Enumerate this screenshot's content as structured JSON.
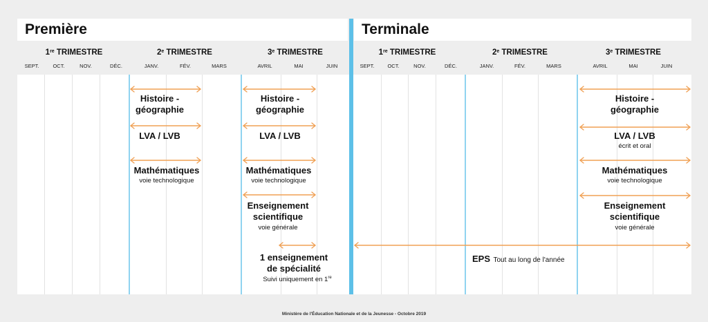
{
  "titles": {
    "premiere": "Première",
    "terminale": "Terminale"
  },
  "trimesters": {
    "premiere": [
      {
        "num": "1",
        "sup": "re",
        "label": " TRIMESTRE"
      },
      {
        "num": "2",
        "sup": "e",
        "label": " TRIMESTRE"
      },
      {
        "num": "3",
        "sup": "e",
        "label": " TRIMESTRE"
      }
    ],
    "terminale": [
      {
        "num": "1",
        "sup": "re",
        "label": " TRIMESTRE"
      },
      {
        "num": "2",
        "sup": "e",
        "label": " TRIMESTRE"
      },
      {
        "num": "3",
        "sup": "e",
        "label": " TRIMESTRE"
      }
    ]
  },
  "months": {
    "premiere": [
      "SEPT.",
      "OCT.",
      "NOV.",
      "DÉC.",
      "JANV.",
      "FÉV.",
      "MARS",
      "AVRIL",
      "MAI",
      "JUIN"
    ],
    "terminale": [
      "SEPT.",
      "OCT.",
      "NOV.",
      "DÉC.",
      "JANV.",
      "FÉV.",
      "MARS",
      "AVRIL",
      "MAI",
      "JUIN"
    ]
  },
  "premiere": {
    "t2": {
      "histoire": "Histoire -\ngéographie",
      "lva": "LVA / LVB",
      "maths": "Mathématiques",
      "maths_sub": "voie technologique"
    },
    "t3": {
      "histoire": "Histoire -\ngéographie",
      "lva": "LVA / LVB",
      "maths": "Mathématiques",
      "maths_sub": "voie technologique",
      "ens": "Enseignement\nscientifique",
      "ens_sub": "voie générale",
      "spe": "1 enseignement\nde spécialité",
      "spe_sub_text": "Suivi uniquement en 1",
      "spe_sub_sup": "re"
    }
  },
  "terminale": {
    "t3": {
      "histoire": "Histoire -\ngéographie",
      "lva": "LVA / LVB",
      "lva_sub": "écrit et oral",
      "maths": "Mathématiques",
      "maths_sub": "voie technologique",
      "ens": "Enseignement\nscientifique",
      "ens_sub": "voie générale"
    },
    "eps_label": "EPS",
    "eps_sub": "Tout au long de l'année"
  },
  "footer": "Ministère de l'Éducation Nationale et de la Jeunesse - Octobre 2019",
  "colors": {
    "arrow": "#f0a054",
    "divider": "#5dc0e8",
    "trimester_line": "#8fd3f0"
  }
}
